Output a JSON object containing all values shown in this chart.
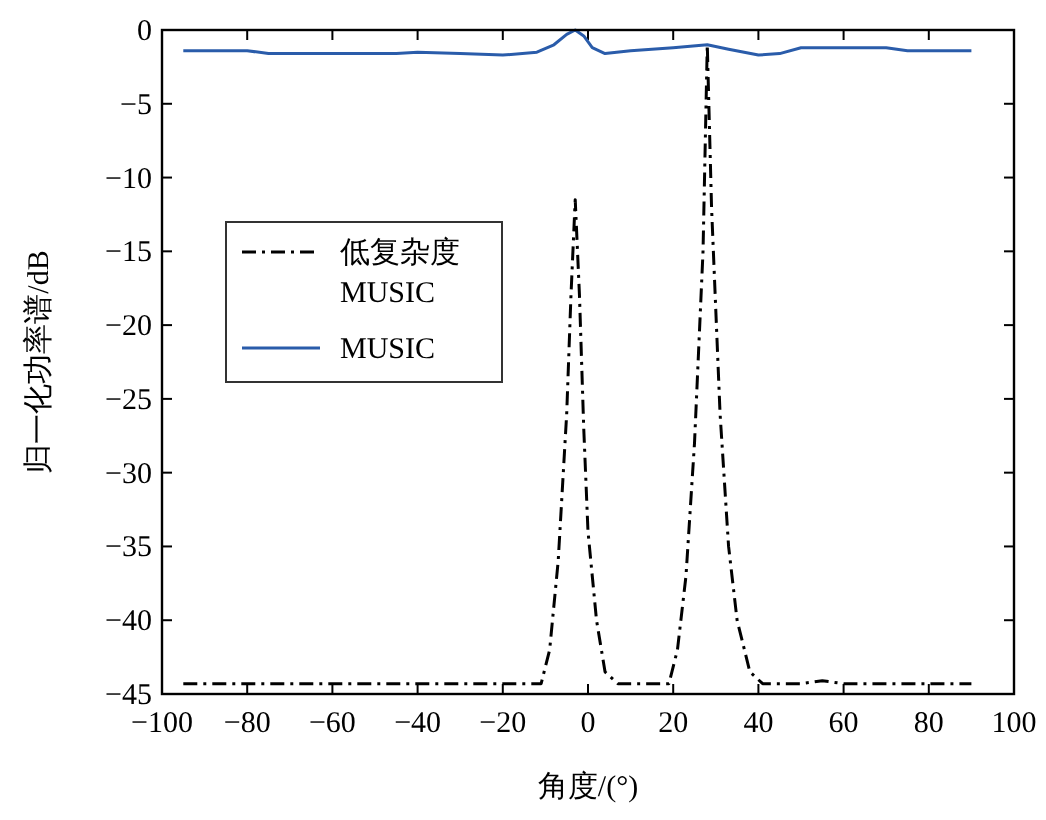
{
  "chart_data": {
    "type": "line",
    "xlabel": "角度/(°)",
    "ylabel": "归一化功率谱/dB",
    "xlim": [
      -100,
      100
    ],
    "ylim": [
      -45,
      0
    ],
    "xticks": [
      -100,
      -80,
      -60,
      -40,
      -20,
      0,
      20,
      40,
      60,
      80,
      100
    ],
    "yticks": [
      -45,
      -40,
      -35,
      -30,
      -25,
      -20,
      -15,
      -10,
      -5,
      0
    ],
    "legend": "top left",
    "grid": false,
    "line_style": "solid",
    "series": [
      {
        "name": "低复杂度MUSIC",
        "color": "#000000",
        "line_style": "dashdot",
        "x": [
          -95,
          -11,
          -9,
          -7,
          -5,
          -4,
          -3,
          -2,
          -1,
          0,
          2,
          4,
          7,
          19,
          21,
          23,
          25,
          27,
          28,
          29,
          31,
          33,
          35,
          38,
          41,
          50,
          55,
          60,
          90
        ],
        "values": [
          -44.3,
          -44.3,
          -42,
          -36,
          -26,
          -18,
          -11.5,
          -18,
          -27,
          -34,
          -40,
          -43.5,
          -44.3,
          -44.3,
          -42,
          -37,
          -28,
          -15,
          -1,
          -12,
          -26,
          -35,
          -40,
          -43.5,
          -44.3,
          -44.3,
          -44.1,
          -44.3,
          -44.3
        ]
      },
      {
        "name": "MUSIC",
        "color": "#2a5caa",
        "x": [
          -95,
          -80,
          -75,
          -60,
          -45,
          -40,
          -30,
          -20,
          -12,
          -8,
          -5,
          -3,
          -1,
          1,
          4,
          10,
          20,
          28,
          33,
          40,
          45,
          50,
          70,
          75,
          90
        ],
        "values": [
          -1.4,
          -1.4,
          -1.6,
          -1.6,
          -1.6,
          -1.5,
          -1.6,
          -1.7,
          -1.5,
          -1,
          -0.3,
          0,
          -0.4,
          -1.2,
          -1.6,
          -1.4,
          -1.2,
          -1,
          -1.3,
          -1.7,
          -1.6,
          -1.2,
          -1.2,
          -1.4,
          -1.4
        ]
      }
    ]
  }
}
